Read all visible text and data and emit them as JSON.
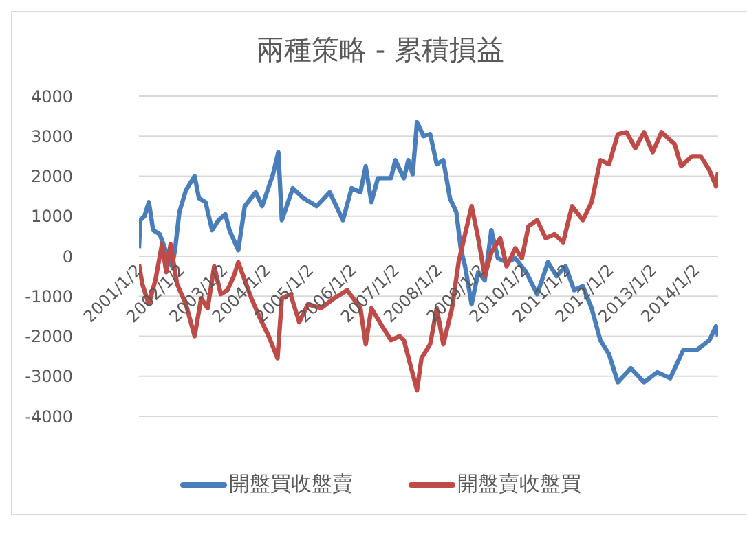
{
  "chart_data": {
    "type": "line",
    "title": "兩種策略 - 累積損益",
    "xlim": [
      "2001-01-02",
      "2014-07-05"
    ],
    "xticks": [
      {
        "value": "2001-01-02",
        "label": "2001/1/2"
      },
      {
        "value": "2002-01-02",
        "label": "2002/1/2"
      },
      {
        "value": "2003-01-02",
        "label": "2003/1/2"
      },
      {
        "value": "2004-01-02",
        "label": "2004/1/2"
      },
      {
        "value": "2005-01-02",
        "label": "2005/1/2"
      },
      {
        "value": "2006-01-02",
        "label": "2006/1/2"
      },
      {
        "value": "2007-01-02",
        "label": "2007/1/2"
      },
      {
        "value": "2008-01-02",
        "label": "2008/1/2"
      },
      {
        "value": "2009-01-02",
        "label": "2009/1/2"
      },
      {
        "value": "2010-01-02",
        "label": "2010/1/2"
      },
      {
        "value": "2011-01-02",
        "label": "2011/1/2"
      },
      {
        "value": "2012-01-02",
        "label": "2012/1/2"
      },
      {
        "value": "2013-01-02",
        "label": "2013/1/2"
      },
      {
        "value": "2014-01-02",
        "label": "2014/1/2"
      }
    ],
    "ylim": [
      -4000,
      4000
    ],
    "yticks": [
      -4000,
      -3000,
      -2000,
      -1000,
      0,
      1000,
      2000,
      3000,
      4000
    ],
    "grid": "y",
    "legend": "bottom",
    "marker": "none",
    "series": [
      {
        "name": "開盤買收盤賣",
        "color": "#4a7ebb",
        "x": [
          "2001-01-02",
          "2001-01-13",
          "2001-02-18",
          "2001-03-27",
          "2001-05-03",
          "2001-06-28",
          "2001-08-23",
          "2001-10-10",
          "2001-11-05",
          "2001-12-12",
          "2002-02-06",
          "2002-04-21",
          "2002-05-28",
          "2002-07-23",
          "2002-09-17",
          "2002-11-11",
          "2003-01-07",
          "2003-02-12",
          "2003-04-28",
          "2003-06-22",
          "2003-09-23",
          "2003-11-17",
          "2004-02-18",
          "2004-04-03",
          "2004-05-03",
          "2004-08-04",
          "2004-11-04",
          "2005-02-24",
          "2005-06-15",
          "2005-10-05",
          "2005-12-18",
          "2006-03-03",
          "2006-04-17",
          "2006-06-04",
          "2006-07-30",
          "2006-11-18",
          "2006-12-25",
          "2007-03-08",
          "2007-04-15",
          "2007-05-22",
          "2007-06-28",
          "2007-08-23",
          "2007-10-18",
          "2007-12-13",
          "2008-02-07",
          "2008-04-03",
          "2008-05-28",
          "2008-07-04",
          "2008-08-10",
          "2008-10-05",
          "2008-11-30",
          "2009-01-25",
          "2009-03-22",
          "2009-05-17",
          "2009-07-30",
          "2009-10-12",
          "2010-01-13",
          "2010-04-16",
          "2010-07-17",
          "2010-09-29",
          "2010-12-14",
          "2011-02-25",
          "2011-05-10",
          "2011-07-24",
          "2011-10-06",
          "2011-12-19",
          "2012-03-03",
          "2012-06-22",
          "2012-10-12",
          "2013-02-01",
          "2013-05-23",
          "2013-09-11",
          "2014-01-02",
          "2014-04-22",
          "2014-06-17",
          "2014-07-05"
        ],
        "values": [
          200,
          900,
          1000,
          1350,
          650,
          550,
          100,
          -250,
          150,
          1100,
          1650,
          2000,
          1450,
          1350,
          650,
          900,
          1050,
          650,
          150,
          1250,
          1600,
          1250,
          2050,
          2600,
          900,
          1700,
          1450,
          1250,
          1600,
          900,
          1700,
          1600,
          2250,
          1350,
          1950,
          1950,
          2400,
          1950,
          2400,
          2050,
          3350,
          3000,
          3050,
          2300,
          2400,
          1450,
          1100,
          200,
          -250,
          -1200,
          -400,
          -600,
          650,
          -50,
          -150,
          -50,
          -400,
          -950,
          -150,
          -500,
          -250,
          -850,
          -750,
          -1300,
          -2100,
          -2450,
          -3150,
          -2800,
          -3150,
          -2900,
          -3050,
          -2350,
          -2350,
          -2100,
          -1750,
          -2000
        ]
      },
      {
        "name": "開盤賣收盤買",
        "color": "#be4b48",
        "x": [
          "2001-01-02",
          "2001-01-31",
          "2001-03-27",
          "2001-05-22",
          "2001-07-17",
          "2001-08-23",
          "2001-09-28",
          "2001-11-23",
          "2002-02-06",
          "2002-04-21",
          "2002-06-16",
          "2002-08-10",
          "2002-10-05",
          "2002-11-30",
          "2003-01-25",
          "2003-03-21",
          "2003-04-28",
          "2003-06-22",
          "2003-08-17",
          "2003-10-30",
          "2004-01-12",
          "2004-03-27",
          "2004-05-03",
          "2004-07-16",
          "2004-09-28",
          "2004-12-11",
          "2005-04-02",
          "2005-07-23",
          "2005-11-11",
          "2006-03-03",
          "2006-04-17",
          "2006-06-04",
          "2006-09-04",
          "2006-11-18",
          "2007-01-31",
          "2007-03-08",
          "2007-06-28",
          "2007-08-05",
          "2007-10-18",
          "2007-12-13",
          "2008-02-07",
          "2008-04-21",
          "2008-06-16",
          "2008-08-10",
          "2008-10-05",
          "2008-11-30",
          "2009-01-25",
          "2009-03-22",
          "2009-06-05",
          "2009-07-30",
          "2009-10-12",
          "2009-12-07",
          "2010-02-01",
          "2010-04-16",
          "2010-06-28",
          "2010-09-11",
          "2010-11-24",
          "2011-02-07",
          "2011-05-10",
          "2011-07-24",
          "2011-10-06",
          "2011-12-19",
          "2012-03-03",
          "2012-05-16",
          "2012-07-30",
          "2012-10-12",
          "2012-12-25",
          "2013-03-10",
          "2013-06-30",
          "2013-08-24",
          "2013-11-25",
          "2014-02-07",
          "2014-04-22",
          "2014-06-17",
          "2014-07-05"
        ],
        "values": [
          -200,
          -700,
          -1200,
          -600,
          300,
          -400,
          300,
          -700,
          -1200,
          -2000,
          -1050,
          -1300,
          -250,
          -950,
          -850,
          -500,
          -150,
          -600,
          -1050,
          -1550,
          -2000,
          -2550,
          -1050,
          -950,
          -1650,
          -1200,
          -1300,
          -1050,
          -850,
          -1300,
          -2200,
          -1300,
          -1750,
          -2100,
          -2000,
          -2100,
          -3350,
          -2550,
          -2200,
          -1300,
          -2200,
          -1300,
          -150,
          550,
          1250,
          450,
          -500,
          100,
          450,
          -250,
          200,
          -50,
          750,
          900,
          450,
          550,
          350,
          1250,
          900,
          1350,
          2400,
          2300,
          3050,
          3100,
          2700,
          3100,
          2600,
          3100,
          2800,
          2250,
          2500,
          2500,
          2150,
          1750,
          2100
        ]
      }
    ]
  }
}
